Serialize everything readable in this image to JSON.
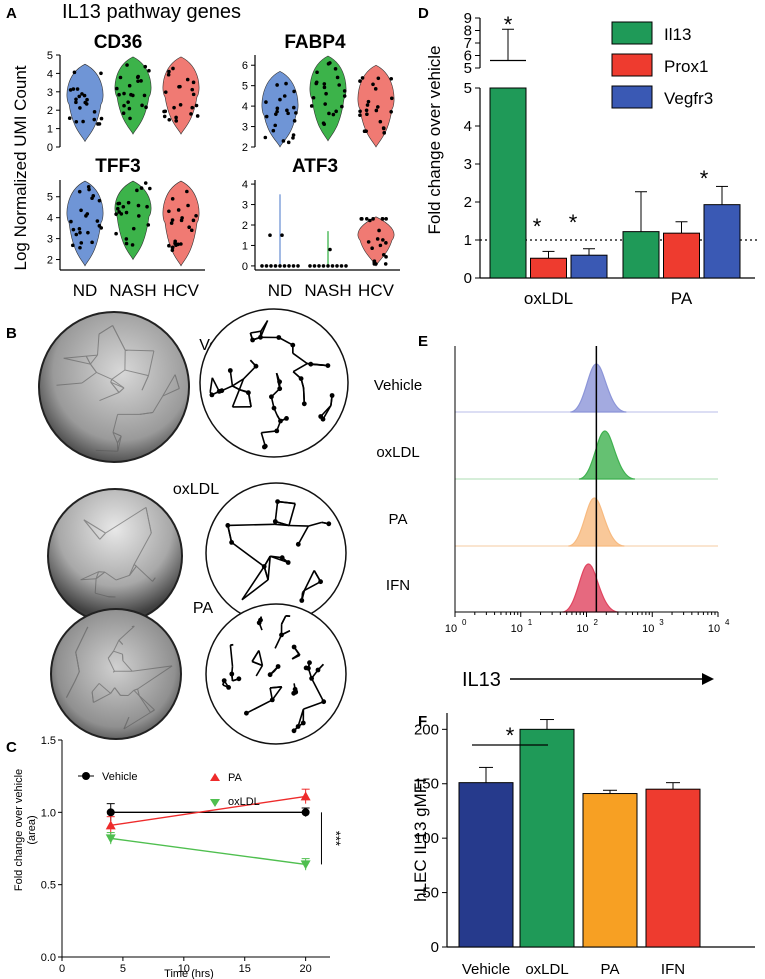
{
  "panel_letters": {
    "A": "A",
    "B": "B",
    "C": "C",
    "D": "D",
    "E": "E",
    "F": "F"
  },
  "colors": {
    "blue": "#6f95d6",
    "green": "#3cb34a",
    "red": "#f07a73",
    "bar_green": "#1f9a58",
    "bar_red": "#ee3b2f",
    "bar_blue": "#3a59b4",
    "navy": "#263a8c",
    "orange": "#f7a023",
    "flow_blue": "#8c95d8",
    "flow_green": "#3fb14f",
    "flow_orange": "#f7ba80",
    "flow_red": "#e0445f",
    "pa_red": "#ee2b2b",
    "ox_green": "#4fbf4f"
  },
  "chart_data": [
    {
      "panel": "A",
      "type": "violin",
      "title": "IL13 pathway genes",
      "ylabel": "Log Normalized UMI Count",
      "categories": [
        "ND",
        "NASH",
        "HCV"
      ],
      "subplots": [
        {
          "gene": "CD36",
          "yticks": [
            "0",
            "1",
            "2",
            "3",
            "4",
            "5"
          ],
          "ylim": [
            0,
            5
          ],
          "medians": [
            2.6,
            3.0,
            3.0
          ]
        },
        {
          "gene": "FABP4",
          "yticks": [
            "2",
            "3",
            "4",
            "5",
            "6"
          ],
          "ylim": [
            2,
            6.5
          ],
          "medians": [
            3.8,
            4.6,
            4.1
          ]
        },
        {
          "gene": "TFF3",
          "yticks": [
            "2",
            "3",
            "4",
            "5"
          ],
          "ylim": [
            1.5,
            5.8
          ],
          "medians": [
            4.0,
            4.3,
            4.0
          ]
        },
        {
          "gene": "ATF3",
          "yticks": [
            "0",
            "1",
            "2",
            "3",
            "4"
          ],
          "ylim": [
            -0.2,
            4.2
          ],
          "medians": [
            0,
            0,
            1.5
          ]
        }
      ]
    },
    {
      "panel": "C",
      "type": "line",
      "xlabel": "Time (hrs)",
      "ylabel": "Fold change over vehicle (area)",
      "xticks": [
        "0",
        "5",
        "10",
        "15",
        "20"
      ],
      "yticks": [
        "0.0",
        "0.5",
        "1.0",
        "1.5"
      ],
      "xlim": [
        0,
        22
      ],
      "ylim": [
        0,
        1.5
      ],
      "x": [
        4,
        20
      ],
      "series": [
        {
          "name": "Vehicle",
          "values": [
            1.0,
            1.0
          ],
          "err": [
            0.06,
            0.03
          ]
        },
        {
          "name": "PA",
          "values": [
            0.91,
            1.11
          ],
          "err": [
            0.06,
            0.05
          ]
        },
        {
          "name": "oxLDL",
          "values": [
            0.82,
            0.64
          ],
          "err": [
            0.04,
            0.04
          ]
        }
      ],
      "significance": "***"
    },
    {
      "panel": "D",
      "type": "bar",
      "ylabel": "Fold change over vehicle",
      "categories": [
        "oxLDL",
        "PA"
      ],
      "series": [
        {
          "name": "Il13",
          "values": [
            5.6,
            1.22
          ],
          "err": [
            2.5,
            1.05
          ]
        },
        {
          "name": "Prox1",
          "values": [
            0.52,
            1.18
          ],
          "err": [
            0.18,
            0.3
          ]
        },
        {
          "name": "Vegfr3",
          "values": [
            0.6,
            1.93
          ],
          "err": [
            0.17,
            0.48
          ]
        }
      ],
      "yticks_lower": [
        "0",
        "1",
        "2",
        "3",
        "4",
        "5"
      ],
      "yticks_upper": [
        "5",
        "6",
        "7",
        "8",
        "9"
      ],
      "ylim_lower": [
        0,
        5
      ],
      "ylim_upper": [
        5,
        9
      ],
      "reference_line": 1,
      "significance": [
        "*",
        "*",
        "*",
        "*"
      ]
    },
    {
      "panel": "E",
      "type": "histogram",
      "xlabel": "IL13",
      "rows": [
        "Vehicle",
        "oxLDL",
        "PA",
        "IFN"
      ],
      "peaks_log10": [
        2.15,
        2.28,
        2.12,
        2.03
      ],
      "xticks": [
        "10",
        "10",
        "10",
        "10",
        "10"
      ],
      "xtick_exponents": [
        "0",
        "1",
        "2",
        "3",
        "4"
      ],
      "reference_log10": 2.15
    },
    {
      "panel": "F",
      "type": "bar",
      "ylabel": "hLEC IL13 gMFI",
      "categories": [
        "Vehicle",
        "oxLDL",
        "PA",
        "IFN"
      ],
      "values": [
        151,
        200,
        141,
        145
      ],
      "err": [
        14,
        9,
        3,
        6
      ],
      "yticks": [
        "0",
        "50",
        "100",
        "150",
        "200"
      ],
      "ylim": [
        0,
        215
      ],
      "significance": "*"
    }
  ],
  "panel_b": {
    "title_vehicle": "Vehicle",
    "title_oxldl": "oxLDL",
    "title_pa": "PA"
  }
}
